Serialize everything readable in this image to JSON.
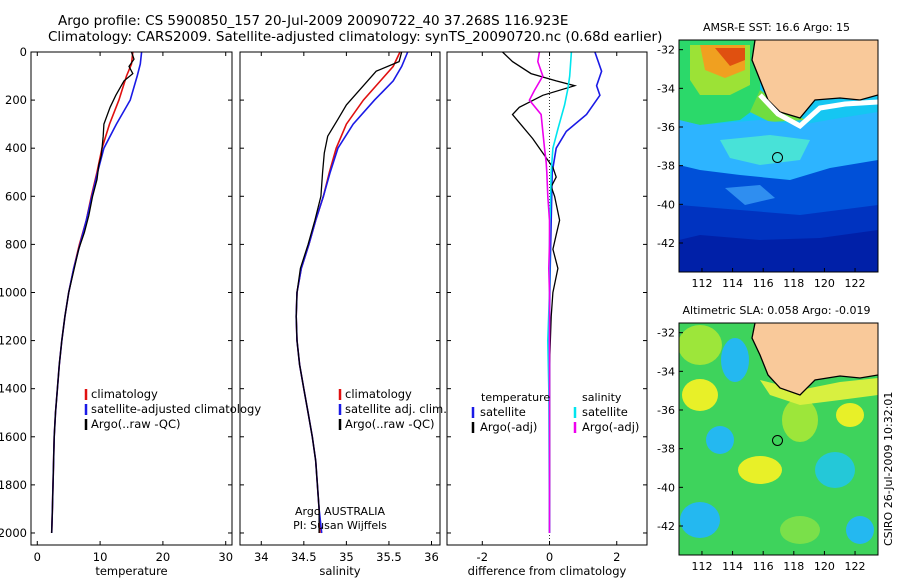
{
  "header": {
    "line1": "Argo profile: CS 5900850_157 20-Jul-2009 20090722_40 37.268S 116.923E",
    "line2": "Climatology: CARS2009. Satellite-adjusted climatology: synTS_20090720.nc (0.68d earlier)"
  },
  "footer_stamp": "CSIRO 26-Jul-2009 10:32:01",
  "colors": {
    "red": "#e01010",
    "blue": "#1a1ae6",
    "black": "#000000",
    "cyan": "#00e5ee",
    "magenta": "#ee00ee",
    "land": "#f9c99a",
    "coast": "#000000"
  },
  "chart_data": [
    {
      "type": "line",
      "id": "temperature",
      "xlabel": "temperature",
      "xlim": [
        -1,
        31
      ],
      "xticks": [
        0,
        10,
        20,
        30
      ],
      "ylim": [
        2050,
        0
      ],
      "yticks": [
        0,
        200,
        400,
        600,
        800,
        1000,
        1200,
        1400,
        1600,
        1800,
        2000
      ],
      "legend": [
        "climatology",
        "satellite-adjusted climatology",
        "Argo(..raw -QC)"
      ],
      "series": [
        {
          "name": "climatology",
          "color": "red",
          "points": [
            [
              15.2,
              0
            ],
            [
              15.0,
              50
            ],
            [
              14.2,
              100
            ],
            [
              13.0,
              200
            ],
            [
              11.5,
              300
            ],
            [
              10.3,
              400
            ],
            [
              9.5,
              500
            ],
            [
              8.6,
              600
            ],
            [
              7.8,
              700
            ],
            [
              6.7,
              800
            ],
            [
              5.8,
              900
            ],
            [
              5.0,
              1000
            ],
            [
              4.4,
              1100
            ],
            [
              3.9,
              1200
            ],
            [
              3.5,
              1300
            ],
            [
              3.2,
              1400
            ],
            [
              2.9,
              1500
            ],
            [
              2.7,
              1600
            ],
            [
              2.6,
              1700
            ],
            [
              2.5,
              1800
            ],
            [
              2.4,
              1900
            ],
            [
              2.3,
              2000
            ]
          ]
        },
        {
          "name": "satellite-adjusted climatology",
          "color": "blue",
          "points": [
            [
              16.6,
              0
            ],
            [
              16.4,
              50
            ],
            [
              15.9,
              100
            ],
            [
              14.8,
              200
            ],
            [
              12.6,
              300
            ],
            [
              10.6,
              400
            ],
            [
              9.6,
              500
            ],
            [
              8.7,
              600
            ],
            [
              7.8,
              700
            ],
            [
              6.8,
              800
            ],
            [
              5.8,
              900
            ],
            [
              5.0,
              1000
            ],
            [
              4.4,
              1100
            ],
            [
              3.9,
              1200
            ],
            [
              3.5,
              1300
            ],
            [
              3.2,
              1400
            ],
            [
              2.9,
              1500
            ],
            [
              2.7,
              1600
            ],
            [
              2.6,
              1700
            ],
            [
              2.5,
              1800
            ],
            [
              2.4,
              1900
            ],
            [
              2.3,
              2000
            ]
          ]
        },
        {
          "name": "Argo(..raw -QC)",
          "color": "black",
          "points": [
            [
              15.0,
              0
            ],
            [
              15.4,
              30
            ],
            [
              14.6,
              60
            ],
            [
              15.2,
              90
            ],
            [
              13.8,
              120
            ],
            [
              12.5,
              180
            ],
            [
              11.6,
              230
            ],
            [
              10.6,
              300
            ],
            [
              10.5,
              350
            ],
            [
              10.2,
              430
            ],
            [
              9.8,
              470
            ],
            [
              9.5,
              530
            ],
            [
              8.8,
              600
            ],
            [
              8.2,
              680
            ],
            [
              7.5,
              750
            ],
            [
              6.6,
              820
            ],
            [
              5.9,
              900
            ],
            [
              5.0,
              1000
            ],
            [
              4.4,
              1100
            ],
            [
              3.9,
              1200
            ],
            [
              3.5,
              1300
            ],
            [
              3.2,
              1400
            ],
            [
              2.9,
              1500
            ],
            [
              2.7,
              1600
            ],
            [
              2.6,
              1700
            ],
            [
              2.5,
              1800
            ],
            [
              2.4,
              1900
            ],
            [
              2.3,
              2000
            ]
          ]
        }
      ]
    },
    {
      "type": "line",
      "id": "salinity",
      "xlabel": "salinity",
      "xlim": [
        33.75,
        36.1
      ],
      "xticks": [
        34,
        34.5,
        35,
        35.5,
        36
      ],
      "ylim": [
        2050,
        0
      ],
      "legend": [
        "climatology",
        "satellite adj. clim.",
        "Argo(..raw -QC)"
      ],
      "annotation": [
        "Argo AUSTRALIA",
        "PI: Susan Wijffels"
      ],
      "series": [
        {
          "name": "climatology",
          "color": "red",
          "points": [
            [
              35.63,
              0
            ],
            [
              35.55,
              60
            ],
            [
              35.4,
              120
            ],
            [
              35.2,
              200
            ],
            [
              35.0,
              300
            ],
            [
              34.88,
              400
            ],
            [
              34.8,
              500
            ],
            [
              34.73,
              600
            ],
            [
              34.64,
              700
            ],
            [
              34.56,
              800
            ],
            [
              34.47,
              900
            ],
            [
              34.42,
              1000
            ],
            [
              34.41,
              1100
            ],
            [
              34.42,
              1200
            ],
            [
              34.45,
              1300
            ],
            [
              34.5,
              1400
            ],
            [
              34.55,
              1500
            ],
            [
              34.6,
              1600
            ],
            [
              34.64,
              1700
            ],
            [
              34.66,
              1800
            ],
            [
              34.68,
              1900
            ],
            [
              34.69,
              2000
            ]
          ]
        },
        {
          "name": "satellite adj. clim.",
          "color": "blue",
          "points": [
            [
              35.72,
              0
            ],
            [
              35.65,
              60
            ],
            [
              35.55,
              120
            ],
            [
              35.33,
              200
            ],
            [
              35.08,
              300
            ],
            [
              34.9,
              400
            ],
            [
              34.81,
              500
            ],
            [
              34.73,
              600
            ],
            [
              34.64,
              700
            ],
            [
              34.56,
              800
            ],
            [
              34.47,
              900
            ],
            [
              34.42,
              1000
            ],
            [
              34.41,
              1100
            ],
            [
              34.42,
              1200
            ],
            [
              34.45,
              1300
            ],
            [
              34.5,
              1400
            ],
            [
              34.55,
              1500
            ],
            [
              34.6,
              1600
            ],
            [
              34.64,
              1700
            ],
            [
              34.66,
              1800
            ],
            [
              34.68,
              1900
            ],
            [
              34.71,
              2000
            ]
          ]
        },
        {
          "name": "Argo(..raw -QC)",
          "color": "black",
          "points": [
            [
              35.65,
              0
            ],
            [
              35.62,
              40
            ],
            [
              35.35,
              80
            ],
            [
              35.2,
              140
            ],
            [
              35.0,
              220
            ],
            [
              34.9,
              280
            ],
            [
              34.78,
              350
            ],
            [
              34.74,
              420
            ],
            [
              34.72,
              500
            ],
            [
              34.7,
              600
            ],
            [
              34.63,
              700
            ],
            [
              34.55,
              800
            ],
            [
              34.46,
              900
            ],
            [
              34.42,
              1000
            ],
            [
              34.41,
              1100
            ],
            [
              34.42,
              1200
            ],
            [
              34.45,
              1300
            ],
            [
              34.5,
              1400
            ],
            [
              34.55,
              1500
            ],
            [
              34.6,
              1600
            ],
            [
              34.64,
              1700
            ],
            [
              34.66,
              1800
            ],
            [
              34.68,
              1900
            ],
            [
              34.68,
              2000
            ]
          ]
        }
      ]
    },
    {
      "type": "line",
      "id": "difference",
      "xlabel": "difference from climatology",
      "xlim": [
        -3.05,
        2.9
      ],
      "xticks": [
        -2,
        0,
        2
      ],
      "ylim": [
        2050,
        0
      ],
      "legend_left_title": "temperature",
      "legend_right_title": "salinity",
      "legend_left": [
        "satellite",
        "Argo(-adj)"
      ],
      "legend_right": [
        "satellite",
        "Argo(-adj)"
      ],
      "series": [
        {
          "name": "temperature satellite",
          "color": "blue",
          "points": [
            [
              1.35,
              0
            ],
            [
              1.55,
              80
            ],
            [
              1.4,
              140
            ],
            [
              1.5,
              180
            ],
            [
              1.1,
              260
            ],
            [
              0.5,
              330
            ],
            [
              0.2,
              400
            ],
            [
              0.08,
              500
            ],
            [
              0.05,
              700
            ],
            [
              0.02,
              900
            ],
            [
              0.0,
              1100
            ],
            [
              0.0,
              1500
            ],
            [
              0.0,
              2000
            ]
          ]
        },
        {
          "name": "temperature Argo(-adj)",
          "color": "black",
          "points": [
            [
              -1.4,
              0
            ],
            [
              -1.1,
              40
            ],
            [
              -0.55,
              90
            ],
            [
              0.2,
              120
            ],
            [
              0.75,
              140
            ],
            [
              -0.2,
              180
            ],
            [
              -0.9,
              230
            ],
            [
              -1.1,
              260
            ],
            [
              -0.8,
              310
            ],
            [
              -0.5,
              360
            ],
            [
              -0.2,
              420
            ],
            [
              0.1,
              480
            ],
            [
              0.2,
              520
            ],
            [
              0.05,
              560
            ],
            [
              0.15,
              600
            ],
            [
              0.3,
              700
            ],
            [
              0.2,
              760
            ],
            [
              0.1,
              820
            ],
            [
              0.25,
              900
            ],
            [
              0.1,
              1000
            ],
            [
              0.05,
              1100
            ],
            [
              0.0,
              1300
            ],
            [
              0.0,
              2000
            ]
          ]
        },
        {
          "name": "salinity satellite",
          "color": "cyan",
          "points": [
            [
              0.65,
              0
            ],
            [
              0.6,
              100
            ],
            [
              0.55,
              150
            ],
            [
              0.45,
              220
            ],
            [
              0.25,
              320
            ],
            [
              0.1,
              400
            ],
            [
              0.05,
              500
            ],
            [
              0.0,
              800
            ],
            [
              0.0,
              1000
            ],
            [
              -0.05,
              1200
            ],
            [
              -0.02,
              1400
            ],
            [
              0.0,
              2000
            ]
          ]
        },
        {
          "name": "salinity Argo(-adj)",
          "color": "magenta",
          "points": [
            [
              -0.3,
              0
            ],
            [
              -0.35,
              40
            ],
            [
              -0.2,
              100
            ],
            [
              -0.45,
              160
            ],
            [
              -0.6,
              200
            ],
            [
              -0.25,
              260
            ],
            [
              -0.2,
              330
            ],
            [
              -0.15,
              400
            ],
            [
              -0.1,
              460
            ],
            [
              -0.08,
              500
            ],
            [
              -0.05,
              600
            ],
            [
              0.0,
              700
            ],
            [
              0.0,
              800
            ],
            [
              -0.02,
              900
            ],
            [
              0.0,
              1000
            ],
            [
              0.0,
              2000
            ]
          ]
        }
      ]
    },
    {
      "type": "heatmap",
      "id": "sst_map",
      "title": "AMSR-E SST: 16.6 Argo: 15",
      "xlim": [
        110.5,
        123.5
      ],
      "ylim": [
        -43.5,
        -31.5
      ],
      "xticks": [
        112,
        114,
        116,
        118,
        120,
        122
      ],
      "yticks": [
        -32,
        -34,
        -36,
        -38,
        -40,
        -42
      ],
      "marker": [
        116.923,
        -37.268
      ]
    },
    {
      "type": "heatmap",
      "id": "sla_map",
      "title": "Altimetric SLA: 0.058 Argo: -0.019",
      "xlim": [
        110.5,
        123.5
      ],
      "ylim": [
        -43.5,
        -31.5
      ],
      "xticks": [
        112,
        114,
        116,
        118,
        120,
        122
      ],
      "yticks": [
        -32,
        -34,
        -36,
        -38,
        -40,
        -42
      ],
      "marker": [
        116.923,
        -37.268
      ]
    }
  ]
}
